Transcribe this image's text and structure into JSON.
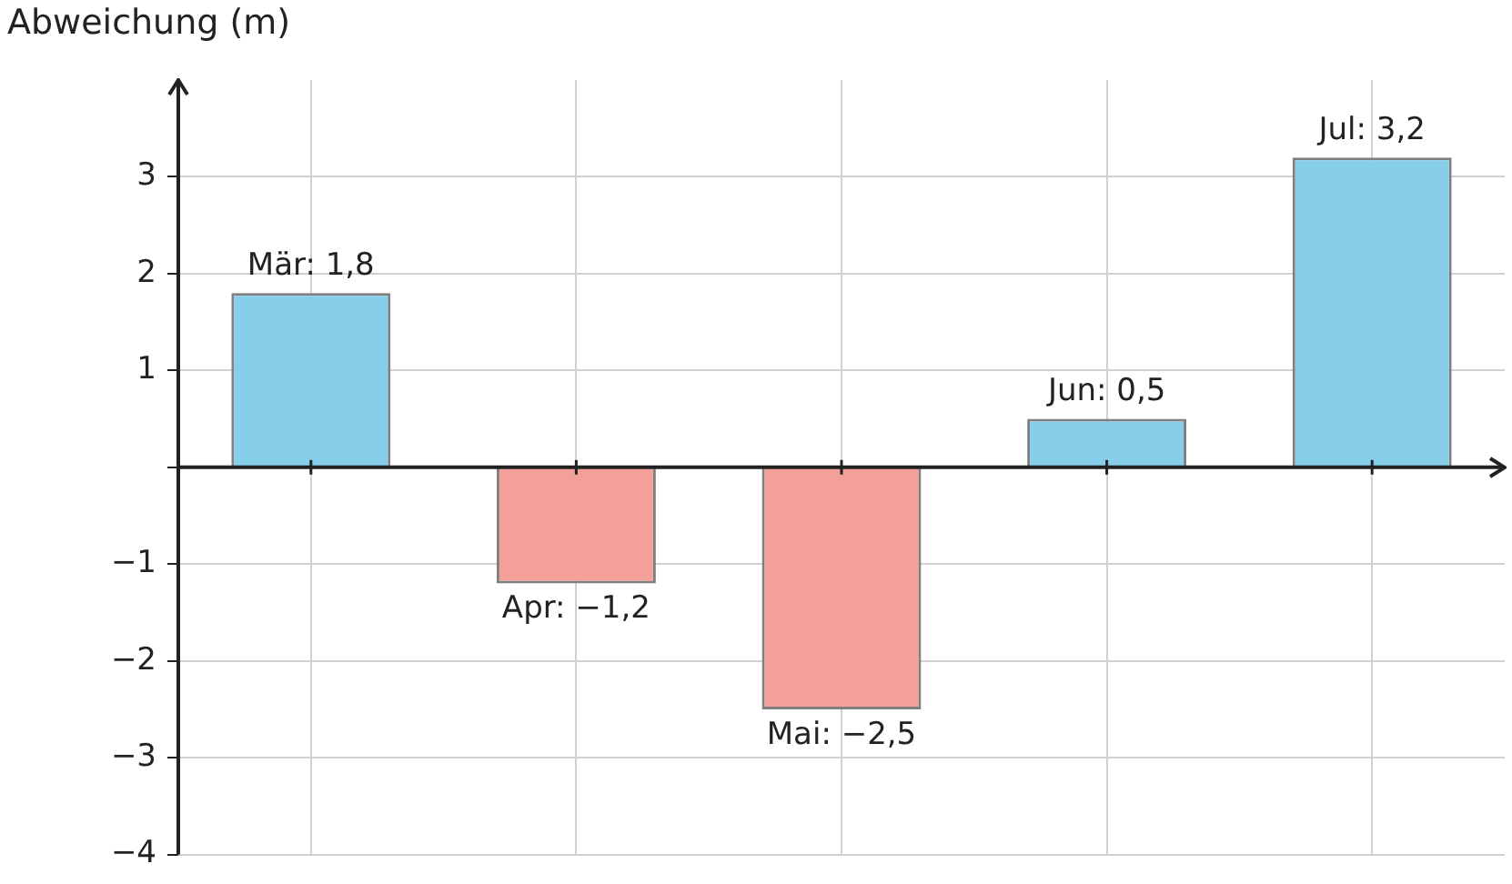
{
  "chart_data": {
    "type": "bar",
    "ylabel": "Abweichung (m)",
    "categories": [
      null,
      null,
      null,
      null,
      null
    ],
    "values": [
      1.8,
      -1.2,
      -2.5,
      0.5,
      3.2
    ],
    "colors": [
      "#87ceeb",
      "#f4a09a",
      "#f4a09a",
      "#87ceeb",
      "#87ceeb"
    ],
    "value_labels": [
      "Mär: 1,8",
      "Apr: −1,2",
      "Mai: −2,5",
      "Jun: 0,5",
      "Jul: 3,2"
    ],
    "ylim": [
      -4,
      4
    ],
    "yticks": [
      -4,
      -3,
      -2,
      -1,
      {
        "value": 0,
        "label": null
      },
      1,
      2,
      3
    ],
    "grid": true,
    "tick_labels": "y"
  }
}
